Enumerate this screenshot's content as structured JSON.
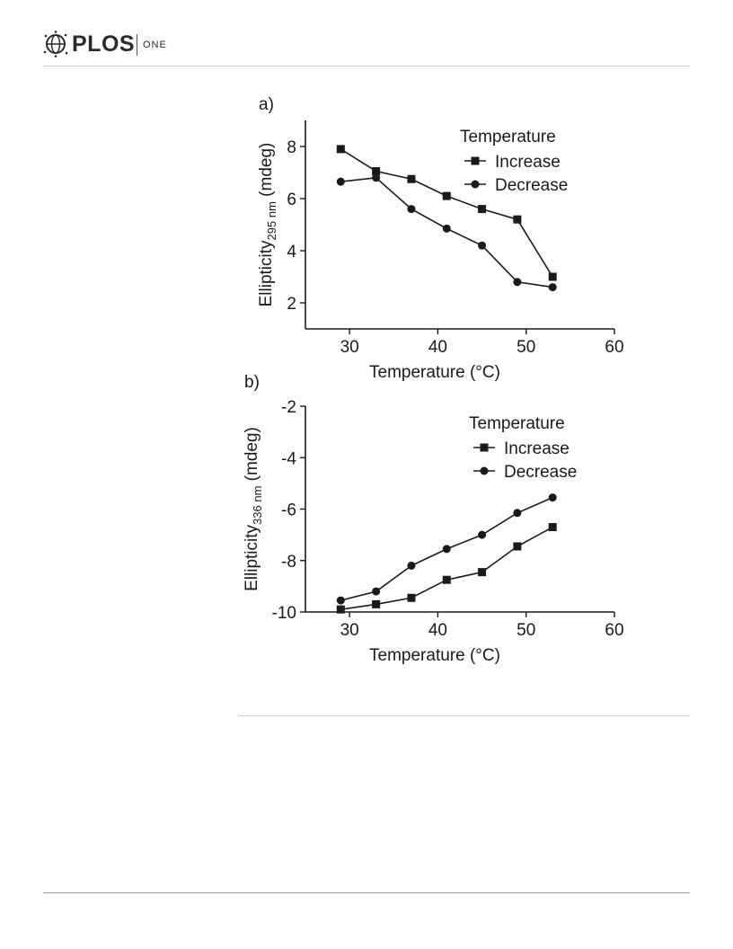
{
  "header": {
    "brand": "PLOS",
    "journal": "ONE",
    "logo_icon": "plos-logo-icon"
  },
  "chart_data": [
    {
      "type": "line",
      "panel_label": "a)",
      "title": "",
      "xlabel": "Temperature (°C)",
      "ylabel_main": "Ellipticity",
      "ylabel_sub": "295 nm",
      "ylabel_unit": " (mdeg)",
      "xlim": [
        25,
        60
      ],
      "ylim": [
        1,
        9
      ],
      "xticks": [
        30,
        40,
        50,
        60
      ],
      "yticks": [
        2,
        4,
        6,
        8
      ],
      "grid": false,
      "legend": {
        "title": "Temperature",
        "position": "top-right"
      },
      "series": [
        {
          "name": "Increase",
          "marker": "square",
          "x": [
            29,
            33,
            37,
            41,
            45,
            49,
            53
          ],
          "y": [
            7.9,
            7.05,
            6.75,
            6.1,
            5.6,
            5.2,
            3.0
          ]
        },
        {
          "name": "Decrease",
          "marker": "circle",
          "x": [
            29,
            33,
            37,
            41,
            45,
            49,
            53
          ],
          "y": [
            6.65,
            6.8,
            5.6,
            4.85,
            4.2,
            2.8,
            2.6
          ]
        }
      ]
    },
    {
      "type": "line",
      "panel_label": "b)",
      "title": "",
      "xlabel": "Temperature (°C)",
      "ylabel_main": "Ellipticity",
      "ylabel_sub": "336 nm",
      "ylabel_unit": " (mdeg)",
      "xlim": [
        25,
        60
      ],
      "ylim": [
        -10,
        -2
      ],
      "xticks": [
        30,
        40,
        50,
        60
      ],
      "yticks": [
        -10,
        -8,
        -6,
        -4,
        -2
      ],
      "grid": false,
      "legend": {
        "title": "Temperature",
        "position": "top-right"
      },
      "series": [
        {
          "name": "Increase",
          "marker": "square",
          "x": [
            29,
            33,
            37,
            41,
            45,
            49,
            53
          ],
          "y": [
            -9.9,
            -9.7,
            -9.45,
            -8.75,
            -8.45,
            -7.45,
            -6.7
          ]
        },
        {
          "name": "Decrease",
          "marker": "circle",
          "x": [
            29,
            33,
            37,
            41,
            45,
            49,
            53
          ],
          "y": [
            -9.55,
            -9.2,
            -8.2,
            -7.55,
            -7.0,
            -6.15,
            -5.55
          ]
        }
      ]
    }
  ]
}
